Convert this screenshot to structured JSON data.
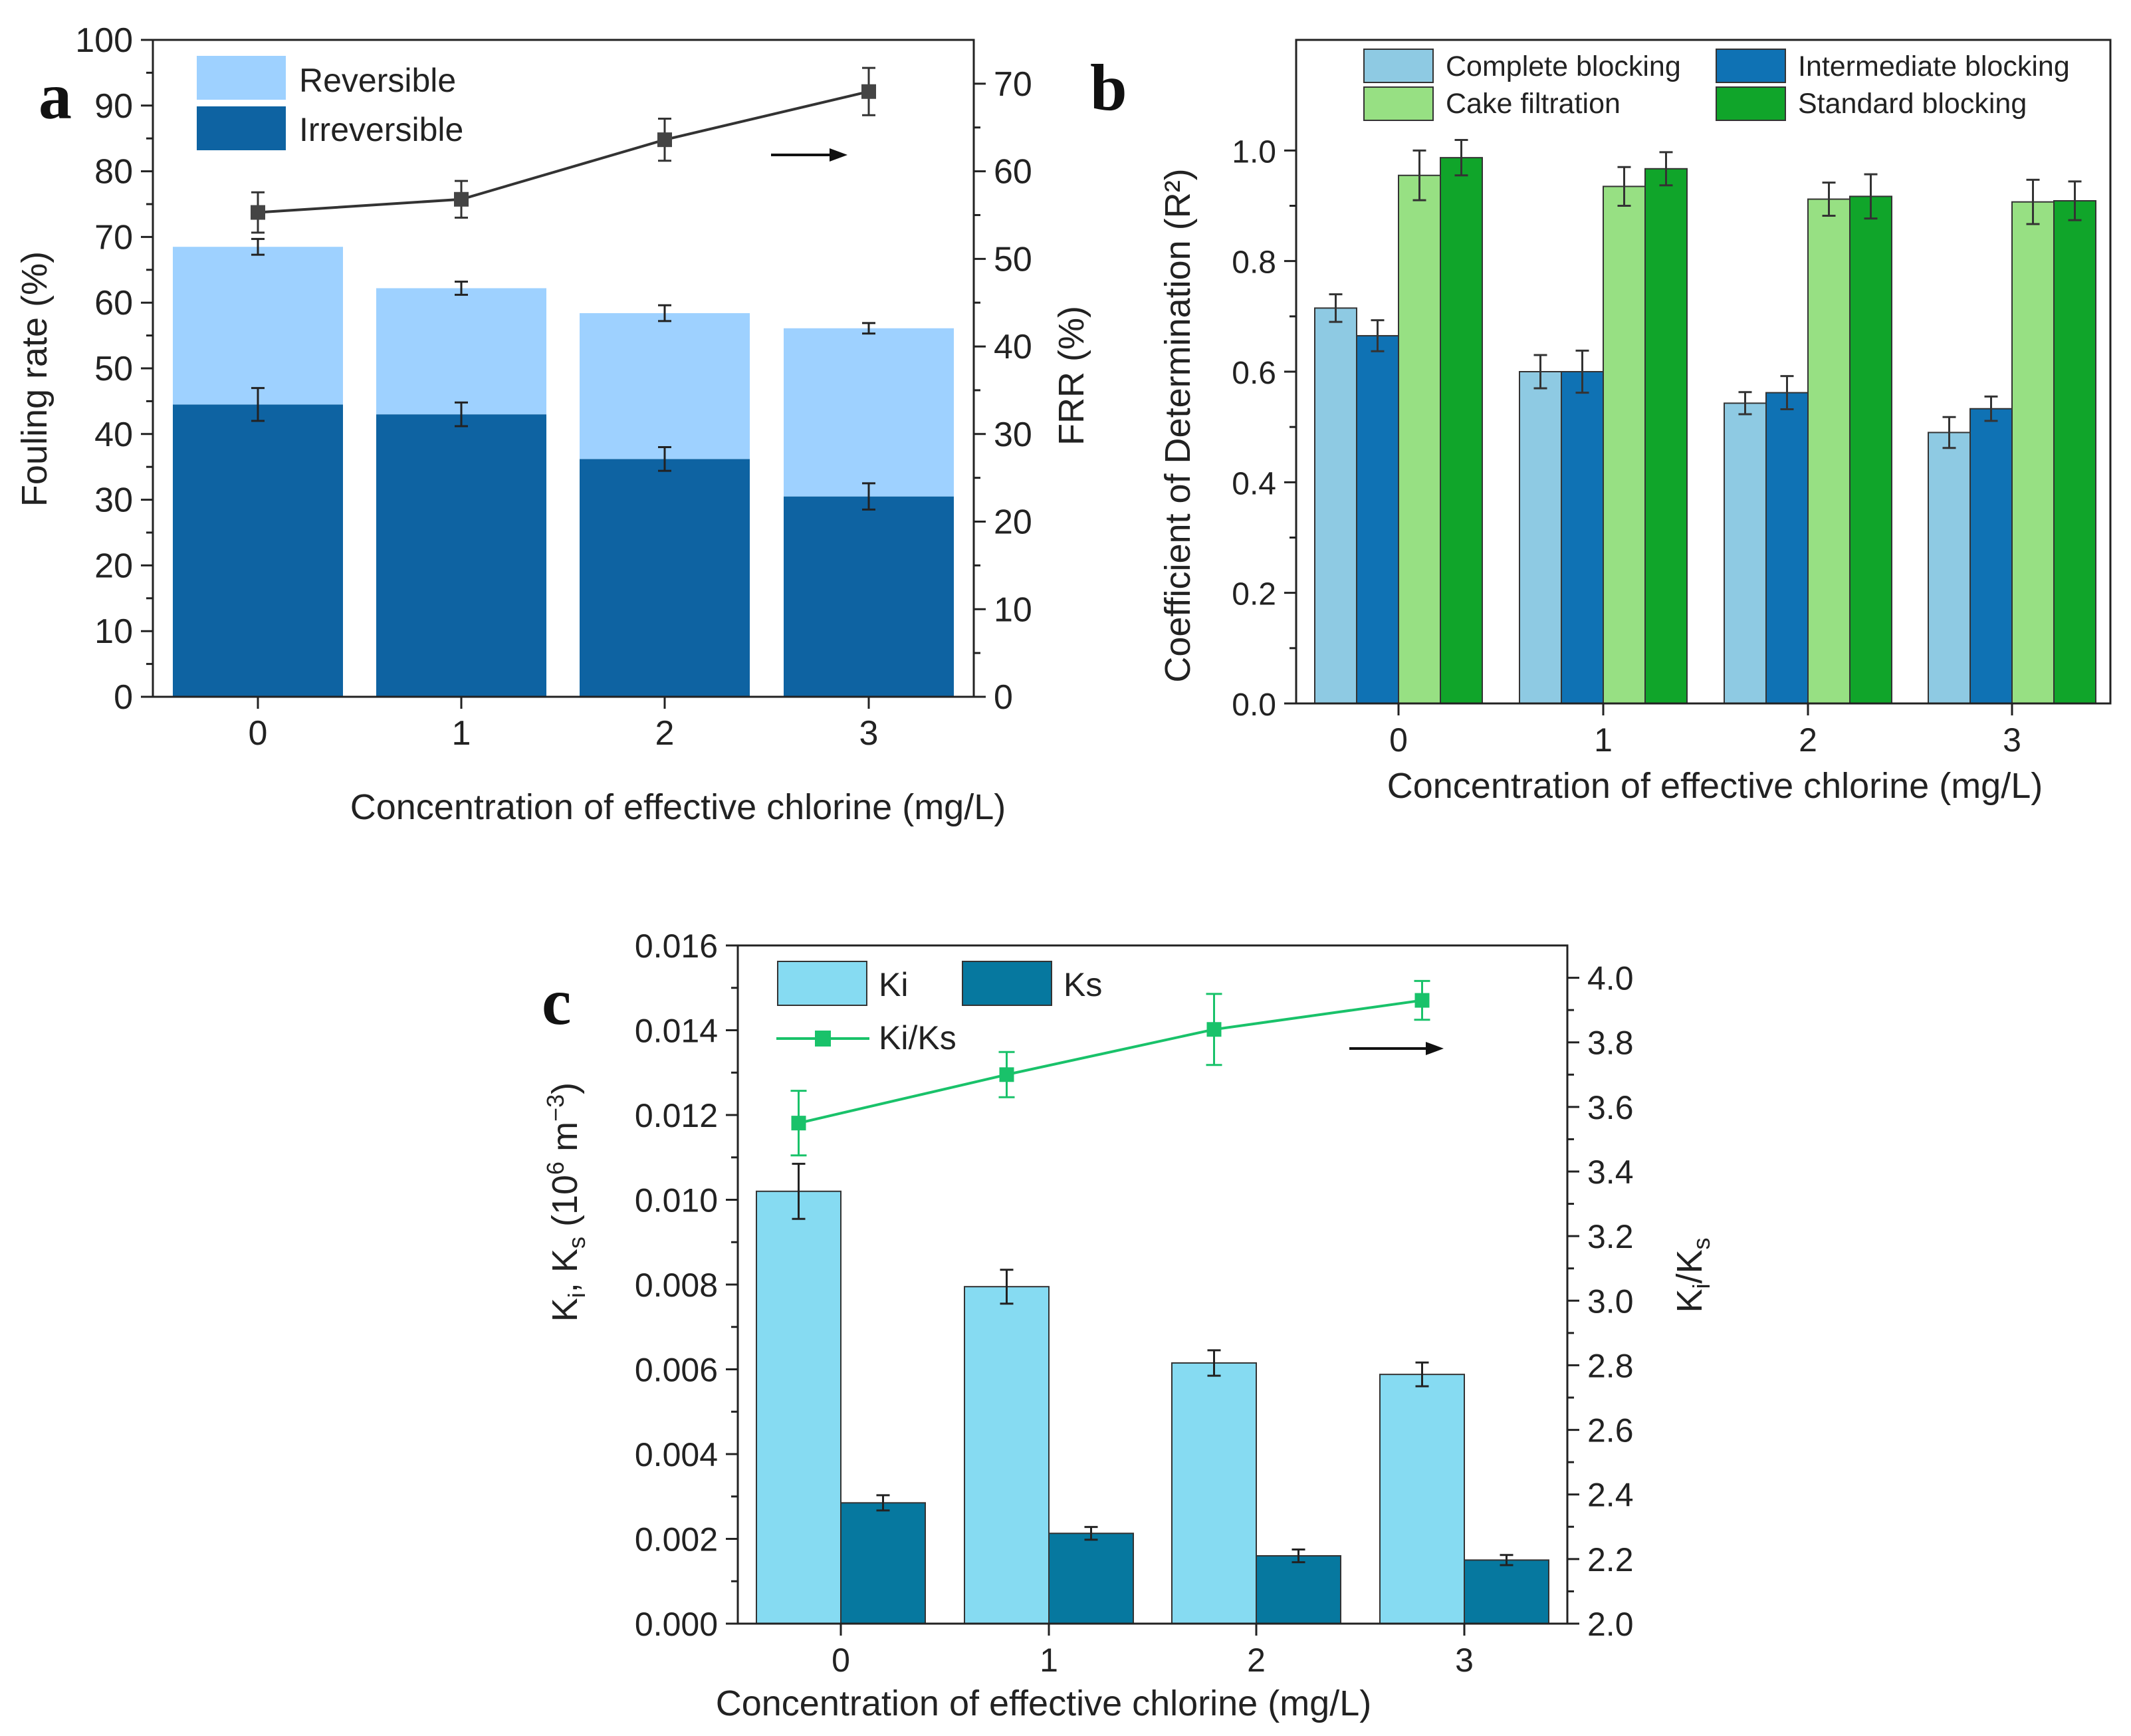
{
  "chart_data": [
    {
      "panel": "a",
      "type": "bar",
      "stacked": true,
      "categories": [
        "0",
        "1",
        "2",
        "3"
      ],
      "xlabel": "Concentration of effective chlorine (mg/L)",
      "ylabel": "Fouling rate (%)",
      "y2label": "FRR (%)",
      "ylim": [
        0,
        100
      ],
      "y2lim": [
        0,
        75
      ],
      "yticks": [
        "0",
        "10",
        "20",
        "30",
        "40",
        "50",
        "60",
        "70",
        "80",
        "90",
        "100"
      ],
      "y2ticks": [
        "0",
        "10",
        "20",
        "30",
        "40",
        "50",
        "60",
        "70"
      ],
      "series": [
        {
          "name": "Irreversible",
          "color": "#0e63a2",
          "values": [
            44.5,
            43.0,
            36.2,
            30.5
          ],
          "errors": [
            2.5,
            1.8,
            1.8,
            2.0
          ]
        },
        {
          "name": "Reversible",
          "color": "#9ed1ff",
          "values": [
            24.0,
            19.2,
            22.2,
            25.6
          ],
          "errors": [
            1.2,
            1.0,
            1.2,
            0.8
          ]
        },
        {
          "name": "FRR",
          "type": "line",
          "axis": "right",
          "color": "#333333",
          "values": [
            55.3,
            56.8,
            63.6,
            69.1
          ],
          "errors": [
            2.3,
            2.1,
            2.4,
            2.7
          ]
        }
      ],
      "legend": [
        {
          "name": "Reversible",
          "color": "#9ed1ff"
        },
        {
          "name": "Irreversible",
          "color": "#0e63a2"
        }
      ],
      "legend_position": "top-left"
    },
    {
      "panel": "b",
      "type": "bar",
      "categories": [
        "0",
        "1",
        "2",
        "3"
      ],
      "xlabel": "Concentration of effective chlorine (mg/L)",
      "ylabel": "Coefficient of Determination (R²)",
      "ylim": [
        0,
        1.2
      ],
      "yticks": [
        "0.0",
        "0.2",
        "0.4",
        "0.6",
        "0.8",
        "1.0"
      ],
      "series": [
        {
          "name": "Complete blocking",
          "color": "#8ecae3",
          "values": [
            0.715,
            0.6,
            0.543,
            0.49
          ],
          "errors": [
            0.025,
            0.03,
            0.02,
            0.028
          ]
        },
        {
          "name": "Intermediate blocking",
          "color": "#0f72b4",
          "values": [
            0.665,
            0.6,
            0.562,
            0.533
          ],
          "errors": [
            0.028,
            0.038,
            0.03,
            0.022
          ]
        },
        {
          "name": "Cake filtration",
          "color": "#97e083",
          "values": [
            0.955,
            0.935,
            0.912,
            0.907
          ],
          "errors": [
            0.045,
            0.035,
            0.03,
            0.04
          ]
        },
        {
          "name": "Standard blocking",
          "color": "#10a52a",
          "values": [
            0.987,
            0.967,
            0.917,
            0.909
          ],
          "errors": [
            0.032,
            0.03,
            0.04,
            0.035
          ]
        }
      ],
      "legend_position": "top"
    },
    {
      "panel": "c",
      "type": "bar",
      "categories": [
        "0",
        "1",
        "2",
        "3"
      ],
      "xlabel": "Concentration of effective chlorine (mg/L)",
      "ylabel": "Ki, Ks (10^6 m^-3)",
      "y2label": "Ki/Ks",
      "ylim": [
        0,
        0.016
      ],
      "y2lim": [
        2.0,
        4.1
      ],
      "yticks": [
        "0.000",
        "0.002",
        "0.004",
        "0.006",
        "0.008",
        "0.010",
        "0.012",
        "0.014",
        "0.016"
      ],
      "y2ticks": [
        "2.0",
        "2.2",
        "2.4",
        "2.6",
        "2.8",
        "3.0",
        "3.2",
        "3.4",
        "3.6",
        "3.8",
        "4.0"
      ],
      "series": [
        {
          "name": "Ki",
          "color": "#86dbf2",
          "values": [
            0.0102,
            0.00795,
            0.00615,
            0.00588
          ],
          "errors": [
            0.00065,
            0.0004,
            0.0003,
            0.00028
          ]
        },
        {
          "name": "Ks",
          "color": "#06789f",
          "values": [
            0.00285,
            0.00213,
            0.0016,
            0.0015
          ],
          "errors": [
            0.00018,
            0.00015,
            0.00015,
            0.00012
          ]
        },
        {
          "name": "Ki/Ks",
          "type": "line",
          "axis": "right",
          "color": "#19c26a",
          "values": [
            3.55,
            3.7,
            3.84,
            3.93
          ],
          "errors": [
            0.1,
            0.07,
            0.11,
            0.06
          ]
        }
      ],
      "legend_position": "top-left"
    }
  ],
  "labels": {
    "panel_a": "a",
    "panel_b": "b",
    "panel_c": "c",
    "c_ylabel_main": "K",
    "c_ylabel_sub_i": "i",
    "c_ylabel_mid": ", K",
    "c_ylabel_sub_s": "s",
    "c_ylabel_unit": " (10",
    "c_ylabel_sup6": "6",
    "c_ylabel_unit2": " m",
    "c_ylabel_sup3": "−3",
    "c_ylabel_close": ")",
    "c_y2label_k": "K",
    "c_y2label_i": "i",
    "c_y2label_slash": "/K",
    "c_y2label_s": "s"
  }
}
